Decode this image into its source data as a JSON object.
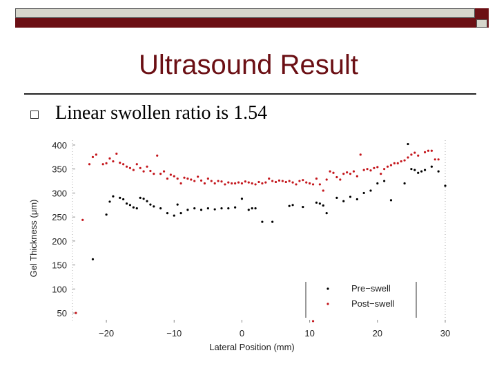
{
  "slide": {
    "title": "Ultrasound Result",
    "bullet": "Linear swollen ratio is 1.54"
  },
  "colors": {
    "accent": "#6b0f14",
    "pre_swell": "#000000",
    "post_swell": "#c4161c"
  },
  "chart_data": {
    "type": "scatter",
    "xlabel": "Lateral Position (mm)",
    "ylabel": "Gel Thickness (μm)",
    "xlim": [
      -25,
      30
    ],
    "ylim": [
      30,
      410
    ],
    "xticks": [
      "−20",
      "−10",
      "0",
      "10",
      "20",
      "30"
    ],
    "xtick_values": [
      -20,
      -10,
      0,
      10,
      20,
      30
    ],
    "yticks": [
      "400",
      "350",
      "300",
      "250",
      "200",
      "150",
      "100",
      "50"
    ],
    "ytick_values": [
      400,
      350,
      300,
      250,
      200,
      150,
      100,
      50
    ],
    "legend_placement": "bottom-right",
    "series": [
      {
        "name": "Pre−swell",
        "color": "#000000",
        "points": [
          [
            -22,
            162
          ],
          [
            -20,
            255
          ],
          [
            -19.5,
            282
          ],
          [
            -19,
            293
          ],
          [
            -18,
            290
          ],
          [
            -17.5,
            287
          ],
          [
            -17,
            278
          ],
          [
            -16.5,
            275
          ],
          [
            -16,
            270
          ],
          [
            -15.5,
            268
          ],
          [
            -15,
            290
          ],
          [
            -14.5,
            288
          ],
          [
            -14,
            283
          ],
          [
            -13.5,
            276
          ],
          [
            -13,
            272
          ],
          [
            -12,
            268
          ],
          [
            -11,
            258
          ],
          [
            -10,
            253
          ],
          [
            -9.5,
            276
          ],
          [
            -9,
            258
          ],
          [
            -8,
            265
          ],
          [
            -7,
            268
          ],
          [
            -6,
            265
          ],
          [
            -5,
            268
          ],
          [
            -4,
            266
          ],
          [
            -3,
            268
          ],
          [
            -2,
            268
          ],
          [
            -1,
            270
          ],
          [
            0,
            288
          ],
          [
            1,
            265
          ],
          [
            1.5,
            268
          ],
          [
            2,
            268
          ],
          [
            3,
            240
          ],
          [
            4.5,
            240
          ],
          [
            7,
            273
          ],
          [
            7.5,
            275
          ],
          [
            9,
            271
          ],
          [
            11,
            280
          ],
          [
            11.5,
            278
          ],
          [
            12,
            274
          ],
          [
            12.5,
            258
          ],
          [
            14,
            290
          ],
          [
            15,
            283
          ],
          [
            16,
            292
          ],
          [
            17,
            287
          ],
          [
            18,
            300
          ],
          [
            19,
            305
          ],
          [
            20,
            320
          ],
          [
            21,
            325
          ],
          [
            22,
            285
          ],
          [
            24,
            320
          ],
          [
            25,
            350
          ],
          [
            25.5,
            348
          ],
          [
            26,
            342
          ],
          [
            26.5,
            345
          ],
          [
            27,
            348
          ],
          [
            28,
            355
          ],
          [
            29,
            345
          ],
          [
            30,
            315
          ],
          [
            24.5,
            402
          ]
        ]
      },
      {
        "name": "Post−swell",
        "color": "#c4161c",
        "points": [
          [
            -26,
            49
          ],
          [
            -25.5,
            49
          ],
          [
            -24.5,
            50
          ],
          [
            -23.5,
            244
          ],
          [
            -22.5,
            360
          ],
          [
            -22,
            375
          ],
          [
            -21.5,
            380
          ],
          [
            -20.5,
            360
          ],
          [
            -20,
            362
          ],
          [
            -19.5,
            372
          ],
          [
            -19,
            366
          ],
          [
            -18.5,
            382
          ],
          [
            -18,
            363
          ],
          [
            -17.5,
            360
          ],
          [
            -17,
            355
          ],
          [
            -16.5,
            352
          ],
          [
            -16,
            348
          ],
          [
            -15.5,
            360
          ],
          [
            -15,
            352
          ],
          [
            -14.5,
            345
          ],
          [
            -14,
            355
          ],
          [
            -13.5,
            346
          ],
          [
            -13,
            340
          ],
          [
            -12.5,
            378
          ],
          [
            -12,
            340
          ],
          [
            -11.5,
            345
          ],
          [
            -11,
            330
          ],
          [
            -10.5,
            338
          ],
          [
            -10,
            335
          ],
          [
            -9.5,
            330
          ],
          [
            -9,
            320
          ],
          [
            -8.5,
            332
          ],
          [
            -8,
            330
          ],
          [
            -7.5,
            328
          ],
          [
            -7,
            325
          ],
          [
            -6.5,
            334
          ],
          [
            -6,
            326
          ],
          [
            -5.5,
            320
          ],
          [
            -5,
            330
          ],
          [
            -4.5,
            325
          ],
          [
            -4,
            320
          ],
          [
            -3.5,
            325
          ],
          [
            -3,
            324
          ],
          [
            -2.5,
            318
          ],
          [
            -2,
            322
          ],
          [
            -1.5,
            320
          ],
          [
            -1,
            320
          ],
          [
            -0.5,
            322
          ],
          [
            0,
            320
          ],
          [
            0.5,
            324
          ],
          [
            1,
            322
          ],
          [
            1.5,
            320
          ],
          [
            2,
            318
          ],
          [
            2.5,
            323
          ],
          [
            3,
            320
          ],
          [
            3.5,
            322
          ],
          [
            4,
            330
          ],
          [
            4.5,
            325
          ],
          [
            5,
            323
          ],
          [
            5.5,
            326
          ],
          [
            6,
            325
          ],
          [
            6.5,
            323
          ],
          [
            7,
            325
          ],
          [
            7.5,
            322
          ],
          [
            8,
            318
          ],
          [
            8.5,
            325
          ],
          [
            9,
            327
          ],
          [
            9.5,
            322
          ],
          [
            10,
            320
          ],
          [
            10.5,
            318
          ],
          [
            11,
            330
          ],
          [
            11.5,
            318
          ],
          [
            12,
            305
          ],
          [
            12.5,
            328
          ],
          [
            13,
            345
          ],
          [
            13.5,
            342
          ],
          [
            14,
            333
          ],
          [
            14.5,
            328
          ],
          [
            15,
            340
          ],
          [
            15.5,
            343
          ],
          [
            16,
            340
          ],
          [
            16.5,
            345
          ],
          [
            17,
            335
          ],
          [
            17.5,
            380
          ],
          [
            18,
            348
          ],
          [
            18.5,
            350
          ],
          [
            19,
            347
          ],
          [
            19.5,
            352
          ],
          [
            20,
            354
          ],
          [
            20.5,
            340
          ],
          [
            21,
            350
          ],
          [
            21.5,
            355
          ],
          [
            22,
            358
          ],
          [
            22.5,
            362
          ],
          [
            23,
            362
          ],
          [
            23.5,
            366
          ],
          [
            24,
            368
          ],
          [
            24.5,
            374
          ],
          [
            25,
            380
          ],
          [
            25.5,
            384
          ],
          [
            26,
            378
          ],
          [
            27,
            385
          ],
          [
            27.5,
            388
          ],
          [
            28,
            388
          ],
          [
            28.5,
            370
          ],
          [
            29,
            370
          ],
          [
            10.5,
            33
          ]
        ]
      }
    ]
  }
}
